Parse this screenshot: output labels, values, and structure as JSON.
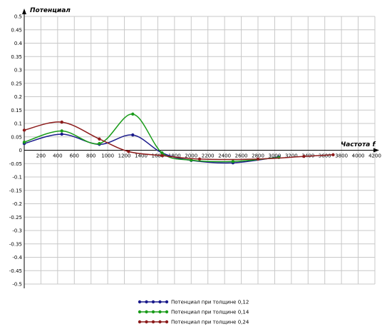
{
  "chart_data": {
    "type": "line",
    "ylabel": "Потенциал",
    "xlabel": "Частота f",
    "xlim": [
      0,
      4200
    ],
    "ylim": [
      -0.5,
      0.5
    ],
    "xticks": [
      200,
      400,
      600,
      800,
      1000,
      1200,
      1400,
      1600,
      1800,
      2000,
      2200,
      2400,
      2600,
      2800,
      3000,
      3200,
      3400,
      3600,
      3800,
      4000,
      4200
    ],
    "yticks": [
      0.5,
      0.45,
      0.4,
      0.35,
      0.3,
      0.25,
      0.2,
      0.15,
      0.1,
      0.05,
      0,
      -0.05,
      -0.1,
      -0.15,
      -0.2,
      -0.25,
      -0.3,
      -0.35,
      -0.4,
      -0.45,
      -0.5
    ],
    "ytick_labels": [
      "0.5",
      "0.45",
      "0.4",
      "0.35",
      "0.3",
      "0.25",
      "0.2",
      "0.15",
      "0.1",
      "0.05",
      "0",
      "-0.05",
      "-0.1",
      "-0.15",
      "-0.2",
      "-0.25",
      "-0.3",
      "-0.35",
      "-0.4",
      "-0.45",
      "-0.5"
    ],
    "grid": true,
    "legend_position": "bottom",
    "series": [
      {
        "name": "Потенциал при толщине 0,12",
        "color": "#1b1b8c",
        "x": [
          0,
          450,
          900,
          1300,
          1650,
          2000,
          2500,
          3050
        ],
        "y": [
          0.025,
          0.06,
          0.022,
          0.057,
          -0.01,
          -0.038,
          -0.047,
          -0.025
        ]
      },
      {
        "name": "Потенциал при толщине 0,14",
        "color": "#1a9c1a",
        "x": [
          0,
          450,
          900,
          1300,
          1650,
          2000,
          2500,
          3050
        ],
        "y": [
          0.03,
          0.072,
          0.025,
          0.135,
          -0.01,
          -0.037,
          -0.042,
          -0.027
        ]
      },
      {
        "name": "Потенциал при толщине 0,24",
        "color": "#8c1b1b",
        "x": [
          0,
          450,
          900,
          1250,
          1650,
          2100,
          2800,
          3350,
          3700
        ],
        "y": [
          0.075,
          0.105,
          0.042,
          -0.005,
          -0.02,
          -0.033,
          -0.033,
          -0.023,
          -0.017
        ]
      }
    ]
  }
}
